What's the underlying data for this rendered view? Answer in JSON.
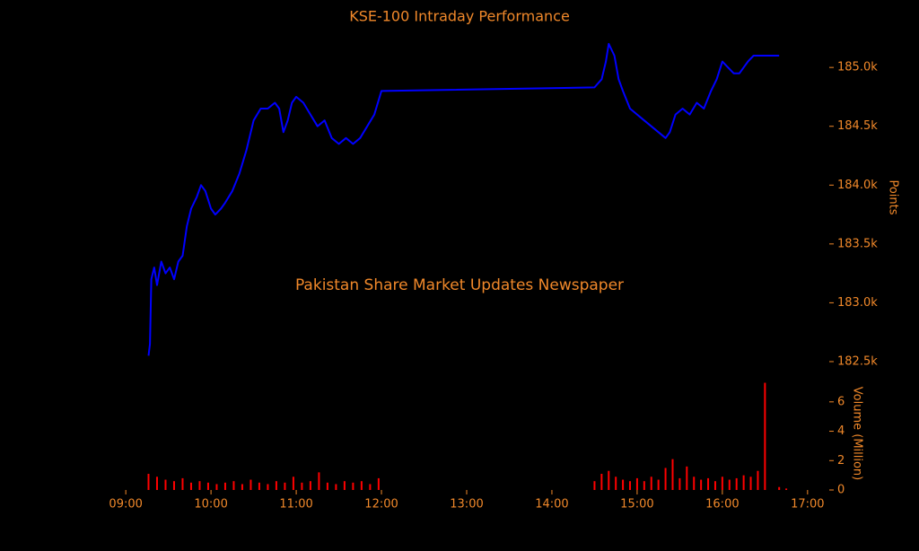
{
  "chart_data": [
    {
      "type": "line",
      "title": "KSE-100 Intraday Performance",
      "annotation": "Pakistan Share Market Updates Newspaper",
      "y_label": "Points",
      "xlim": [
        "08:46",
        "17:14"
      ],
      "ylim": [
        182370,
        185230
      ],
      "yticks": [
        {
          "value": 182500,
          "label": "182.5k"
        },
        {
          "value": 183000,
          "label": "183.0k"
        },
        {
          "value": 183500,
          "label": "183.5k"
        },
        {
          "value": 184000,
          "label": "184.0k"
        },
        {
          "value": 184500,
          "label": "184.5k"
        },
        {
          "value": 185000,
          "label": "185.0k"
        }
      ],
      "x": [
        "09:16",
        "09:17",
        "09:18",
        "09:20",
        "09:22",
        "09:25",
        "09:28",
        "09:31",
        "09:34",
        "09:37",
        "09:40",
        "09:43",
        "09:46",
        "09:50",
        "09:53",
        "09:56",
        "10:00",
        "10:03",
        "10:07",
        "10:10",
        "10:15",
        "10:20",
        "10:25",
        "10:30",
        "10:35",
        "10:40",
        "10:45",
        "10:48",
        "10:51",
        "10:54",
        "10:57",
        "11:00",
        "11:05",
        "11:10",
        "11:15",
        "11:20",
        "11:25",
        "11:30",
        "11:35",
        "11:40",
        "11:45",
        "11:50",
        "11:55",
        "12:00",
        "14:30",
        "14:35",
        "14:38",
        "14:40",
        "14:44",
        "14:47",
        "14:50",
        "14:55",
        "15:00",
        "15:05",
        "15:10",
        "15:15",
        "15:20",
        "15:23",
        "15:27",
        "15:32",
        "15:37",
        "15:42",
        "15:47",
        "15:52",
        "15:56",
        "16:00",
        "16:04",
        "16:08",
        "16:12",
        "16:15",
        "16:18",
        "16:22",
        "16:25",
        "16:30",
        "16:40"
      ],
      "series": [
        {
          "name": "KSE-100",
          "color": "#0000ff",
          "values": [
            182550,
            182650,
            183200,
            183300,
            183150,
            183350,
            183250,
            183300,
            183200,
            183350,
            183400,
            183650,
            183800,
            183900,
            184000,
            183950,
            183800,
            183750,
            183800,
            183850,
            183950,
            184100,
            184300,
            184550,
            184650,
            184650,
            184700,
            184650,
            184450,
            184550,
            184700,
            184750,
            184700,
            184600,
            184500,
            184550,
            184400,
            184350,
            184400,
            184350,
            184400,
            184500,
            184600,
            184800,
            184830,
            184900,
            185050,
            185200,
            185100,
            184900,
            184800,
            184650,
            184600,
            184550,
            184500,
            184450,
            184400,
            184450,
            184600,
            184650,
            184600,
            184700,
            184650,
            184800,
            184900,
            185050,
            185000,
            184950,
            184950,
            185000,
            185050,
            185100,
            185100,
            185100,
            185100
          ]
        }
      ]
    },
    {
      "type": "bar",
      "y_label": "Volume (Million)",
      "xlim": [
        "08:46",
        "17:14"
      ],
      "xticks": [
        "09:00",
        "10:00",
        "11:00",
        "12:00",
        "13:00",
        "14:00",
        "15:00",
        "16:00",
        "17:00"
      ],
      "ylim": [
        0,
        7.7
      ],
      "yticks": [
        0,
        2,
        4,
        6
      ],
      "x": [
        "09:16",
        "09:22",
        "09:28",
        "09:34",
        "09:40",
        "09:46",
        "09:52",
        "09:58",
        "10:04",
        "10:10",
        "10:16",
        "10:22",
        "10:28",
        "10:34",
        "10:40",
        "10:46",
        "10:52",
        "10:58",
        "11:04",
        "11:10",
        "11:16",
        "11:22",
        "11:28",
        "11:34",
        "11:40",
        "11:46",
        "11:52",
        "11:58",
        "14:30",
        "14:35",
        "14:40",
        "14:45",
        "14:50",
        "14:55",
        "15:00",
        "15:05",
        "15:10",
        "15:15",
        "15:20",
        "15:25",
        "15:30",
        "15:35",
        "15:40",
        "15:45",
        "15:50",
        "15:55",
        "16:00",
        "16:05",
        "16:10",
        "16:15",
        "16:20",
        "16:25",
        "16:30",
        "16:40",
        "16:45"
      ],
      "series": [
        {
          "name": "Volume",
          "color": "#ff0000",
          "values": [
            1.1,
            0.9,
            0.7,
            0.6,
            0.8,
            0.5,
            0.6,
            0.5,
            0.4,
            0.5,
            0.6,
            0.4,
            0.7,
            0.5,
            0.4,
            0.6,
            0.5,
            0.9,
            0.5,
            0.6,
            1.2,
            0.5,
            0.4,
            0.6,
            0.5,
            0.6,
            0.4,
            0.8,
            0.6,
            1.1,
            1.3,
            0.9,
            0.7,
            0.6,
            0.8,
            0.6,
            0.9,
            0.7,
            1.5,
            2.1,
            0.8,
            1.6,
            0.9,
            0.7,
            0.8,
            0.6,
            0.9,
            0.7,
            0.8,
            1.0,
            0.9,
            1.3,
            7.3,
            0.2,
            0.1
          ]
        }
      ]
    }
  ]
}
